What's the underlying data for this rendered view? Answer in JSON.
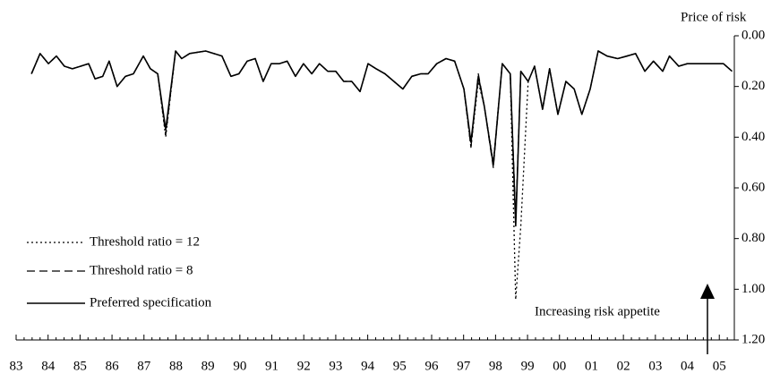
{
  "chart_data": {
    "type": "line",
    "y_axis_label": "Price of risk",
    "annotation": "Increasing risk appetite",
    "x": [
      1983.48,
      1983.75,
      1984.01,
      1984.26,
      1984.51,
      1984.76,
      1985.02,
      1985.27,
      1985.47,
      1985.71,
      1985.91,
      1986.16,
      1986.42,
      1986.67,
      1986.98,
      1987.2,
      1987.43,
      1987.68,
      1987.99,
      1988.18,
      1988.43,
      1988.93,
      1989.44,
      1989.72,
      1989.97,
      1990.23,
      1990.48,
      1990.73,
      1990.98,
      1991.24,
      1991.48,
      1991.74,
      1991.99,
      1992.25,
      1992.49,
      1992.75,
      1993.0,
      1993.25,
      1993.5,
      1993.76,
      1994.01,
      1994.26,
      1994.54,
      1994.82,
      1995.1,
      1995.38,
      1995.66,
      1995.89,
      1996.16,
      1996.45,
      1996.72,
      1997.01,
      1997.23,
      1997.46,
      1997.65,
      1997.93,
      1998.21,
      1998.46,
      1998.63,
      1998.79,
      1999.02,
      1999.22,
      1999.47,
      1999.69,
      1999.95,
      2000.2,
      2000.46,
      2000.7,
      2000.96,
      2001.21,
      2001.49,
      2001.82,
      2002.11,
      2002.38,
      2002.67,
      2002.94,
      2003.23,
      2003.44,
      2003.73,
      2004.0,
      2004.29,
      2004.56,
      2004.85,
      2005.13,
      2005.4
    ],
    "series": [
      {
        "name": "Threshold ratio = 12",
        "color": "#000000",
        "dash": "dotted",
        "values": [
          0.15,
          0.07,
          0.11,
          0.08,
          0.12,
          0.13,
          0.12,
          0.11,
          0.17,
          0.16,
          0.1,
          0.2,
          0.16,
          0.15,
          0.08,
          0.13,
          0.15,
          0.4,
          0.06,
          0.09,
          0.07,
          0.06,
          0.08,
          0.16,
          0.15,
          0.1,
          0.09,
          0.18,
          0.11,
          0.11,
          0.1,
          0.16,
          0.11,
          0.15,
          0.11,
          0.14,
          0.14,
          0.18,
          0.18,
          0.22,
          0.11,
          0.13,
          0.15,
          0.18,
          0.21,
          0.16,
          0.15,
          0.15,
          0.11,
          0.09,
          0.1,
          0.21,
          0.44,
          0.18,
          0.28,
          0.5,
          0.11,
          0.15,
          1.04,
          0.75,
          0.18,
          0.12,
          0.29,
          0.13,
          0.31,
          0.18,
          0.21,
          0.31,
          0.21,
          0.06,
          0.08,
          0.09,
          0.08,
          0.07,
          0.14,
          0.1,
          0.14,
          0.08,
          0.12,
          0.11,
          0.11,
          0.11,
          0.11,
          0.11,
          0.14
        ]
      },
      {
        "name": "Threshold ratio = 8",
        "color": "#000000",
        "dash": "dashed",
        "values": [
          0.15,
          0.07,
          0.11,
          0.08,
          0.12,
          0.13,
          0.12,
          0.11,
          0.17,
          0.16,
          0.1,
          0.2,
          0.16,
          0.15,
          0.08,
          0.13,
          0.15,
          0.39,
          0.06,
          0.09,
          0.07,
          0.06,
          0.08,
          0.16,
          0.15,
          0.1,
          0.09,
          0.18,
          0.11,
          0.11,
          0.1,
          0.16,
          0.11,
          0.15,
          0.11,
          0.14,
          0.14,
          0.18,
          0.18,
          0.22,
          0.11,
          0.13,
          0.15,
          0.18,
          0.21,
          0.16,
          0.15,
          0.15,
          0.11,
          0.09,
          0.1,
          0.21,
          0.44,
          0.15,
          0.28,
          0.52,
          0.11,
          0.15,
          0.72,
          0.14,
          0.18,
          0.12,
          0.29,
          0.13,
          0.31,
          0.18,
          0.21,
          0.31,
          0.21,
          0.06,
          0.08,
          0.09,
          0.08,
          0.07,
          0.14,
          0.1,
          0.14,
          0.08,
          0.12,
          0.11,
          0.11,
          0.11,
          0.11,
          0.11,
          0.14
        ]
      },
      {
        "name": "Preferred specification",
        "color": "#000000",
        "dash": "solid",
        "values": [
          0.15,
          0.07,
          0.11,
          0.08,
          0.12,
          0.13,
          0.12,
          0.11,
          0.17,
          0.16,
          0.1,
          0.2,
          0.16,
          0.15,
          0.08,
          0.13,
          0.15,
          0.37,
          0.06,
          0.09,
          0.07,
          0.06,
          0.08,
          0.16,
          0.15,
          0.1,
          0.09,
          0.18,
          0.11,
          0.11,
          0.1,
          0.16,
          0.11,
          0.15,
          0.11,
          0.14,
          0.14,
          0.18,
          0.18,
          0.22,
          0.11,
          0.13,
          0.15,
          0.18,
          0.21,
          0.16,
          0.15,
          0.15,
          0.11,
          0.09,
          0.1,
          0.21,
          0.42,
          0.16,
          0.28,
          0.51,
          0.11,
          0.15,
          0.75,
          0.14,
          0.18,
          0.12,
          0.29,
          0.13,
          0.31,
          0.18,
          0.21,
          0.31,
          0.21,
          0.06,
          0.08,
          0.09,
          0.08,
          0.07,
          0.14,
          0.1,
          0.14,
          0.08,
          0.12,
          0.11,
          0.11,
          0.11,
          0.11,
          0.11,
          0.14
        ]
      }
    ],
    "xlim": [
      1983,
      2005.47
    ],
    "xticks": [
      {
        "value": 1983,
        "label": "83"
      },
      {
        "value": 1984,
        "label": "84"
      },
      {
        "value": 1985,
        "label": "85"
      },
      {
        "value": 1986,
        "label": "86"
      },
      {
        "value": 1987,
        "label": "87"
      },
      {
        "value": 1988,
        "label": "88"
      },
      {
        "value": 1989,
        "label": "89"
      },
      {
        "value": 1990,
        "label": "90"
      },
      {
        "value": 1991,
        "label": "91"
      },
      {
        "value": 1992,
        "label": "92"
      },
      {
        "value": 1993,
        "label": "93"
      },
      {
        "value": 1994,
        "label": "94"
      },
      {
        "value": 1995,
        "label": "95"
      },
      {
        "value": 1996,
        "label": "96"
      },
      {
        "value": 1997,
        "label": "97"
      },
      {
        "value": 1998,
        "label": "98"
      },
      {
        "value": 1999,
        "label": "99"
      },
      {
        "value": 2000,
        "label": "00"
      },
      {
        "value": 2001,
        "label": "01"
      },
      {
        "value": 2002,
        "label": "02"
      },
      {
        "value": 2003,
        "label": "03"
      },
      {
        "value": 2004,
        "label": "04"
      },
      {
        "value": 2005,
        "label": "05"
      }
    ],
    "ylim": [
      0,
      1.2
    ],
    "yticks": [
      {
        "value": 0,
        "label": "0.00"
      },
      {
        "value": 0.2,
        "label": "0.20"
      },
      {
        "value": 0.4,
        "label": "0.40"
      },
      {
        "value": 0.6,
        "label": "0.60"
      },
      {
        "value": 0.8,
        "label": "0.80"
      },
      {
        "value": 1.0,
        "label": "1.00"
      },
      {
        "value": 1.2,
        "label": "1.20"
      }
    ],
    "y_inverted": true,
    "y_axis_side": "right",
    "legend": "lower left",
    "grid": false
  }
}
